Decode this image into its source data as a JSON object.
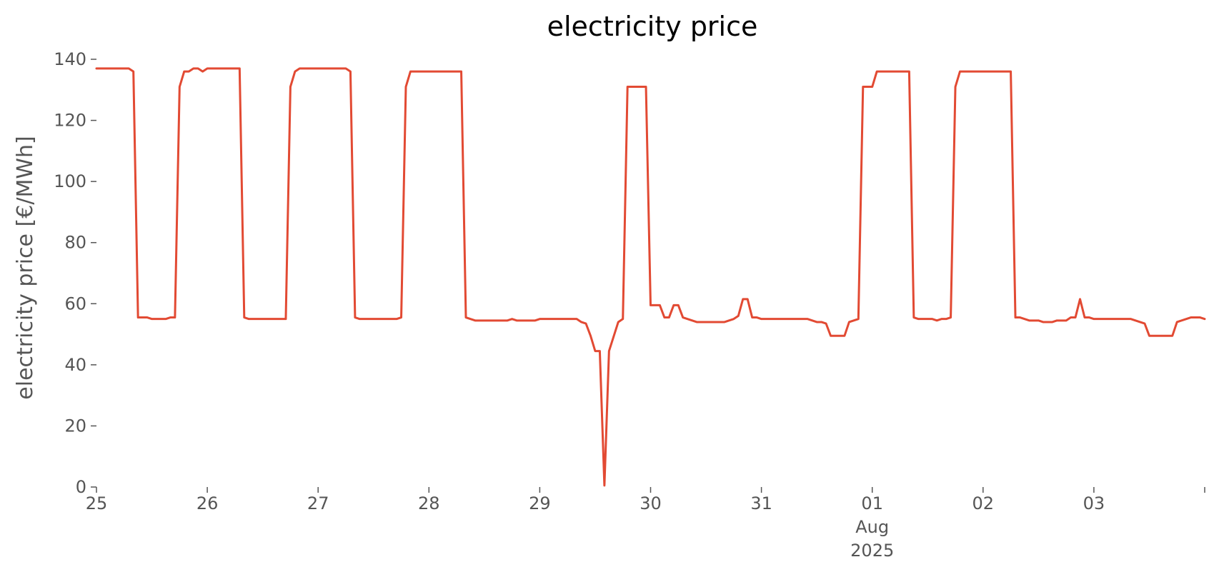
{
  "chart_data": {
    "type": "line",
    "title": "electricity price",
    "xlabel": "",
    "ylabel": "electricity price [€/MWh]",
    "ylim": [
      0,
      140
    ],
    "yticks": [
      0,
      20,
      40,
      60,
      80,
      100,
      120,
      140
    ],
    "xlim": [
      "2025-07-25",
      "2025-08-04"
    ],
    "x_tick_labels": [
      {
        "date": "2025-07-25",
        "lines": [
          "25"
        ]
      },
      {
        "date": "2025-07-26",
        "lines": [
          "26"
        ]
      },
      {
        "date": "2025-07-27",
        "lines": [
          "27"
        ]
      },
      {
        "date": "2025-07-28",
        "lines": [
          "28"
        ]
      },
      {
        "date": "2025-07-29",
        "lines": [
          "29"
        ]
      },
      {
        "date": "2025-07-30",
        "lines": [
          "30"
        ]
      },
      {
        "date": "2025-07-31",
        "lines": [
          "31"
        ]
      },
      {
        "date": "2025-08-01",
        "lines": [
          "01",
          "Aug",
          "2025"
        ]
      },
      {
        "date": "2025-08-02",
        "lines": [
          "02"
        ]
      },
      {
        "date": "2025-08-03",
        "lines": [
          "03"
        ]
      },
      {
        "date": "2025-08-04",
        "lines": []
      }
    ],
    "grid": false,
    "series": [
      {
        "color": "#e24a33",
        "points": [
          [
            "2025-07-25 00:00",
            137
          ],
          [
            "2025-07-25 07:00",
            137
          ],
          [
            "2025-07-25 08:00",
            136
          ],
          [
            "2025-07-25 09:00",
            55.5
          ],
          [
            "2025-07-25 11:00",
            55.5
          ],
          [
            "2025-07-25 12:00",
            55
          ],
          [
            "2025-07-25 15:00",
            55
          ],
          [
            "2025-07-25 16:00",
            55.5
          ],
          [
            "2025-07-25 17:00",
            55.5
          ],
          [
            "2025-07-25 18:00",
            131
          ],
          [
            "2025-07-25 19:00",
            136
          ],
          [
            "2025-07-25 20:00",
            136
          ],
          [
            "2025-07-25 21:00",
            137
          ],
          [
            "2025-07-25 22:00",
            137
          ],
          [
            "2025-07-25 23:00",
            136
          ],
          [
            "2025-07-26 00:00",
            137
          ],
          [
            "2025-07-26 07:00",
            137
          ],
          [
            "2025-07-26 08:00",
            55.5
          ],
          [
            "2025-07-26 09:00",
            55
          ],
          [
            "2025-07-26 17:00",
            55
          ],
          [
            "2025-07-26 18:00",
            131
          ],
          [
            "2025-07-26 19:00",
            136
          ],
          [
            "2025-07-26 20:00",
            137
          ],
          [
            "2025-07-27 06:00",
            137
          ],
          [
            "2025-07-27 07:00",
            136
          ],
          [
            "2025-07-27 08:00",
            55.5
          ],
          [
            "2025-07-27 09:00",
            55
          ],
          [
            "2025-07-27 17:00",
            55
          ],
          [
            "2025-07-27 18:00",
            55.5
          ],
          [
            "2025-07-27 19:00",
            131
          ],
          [
            "2025-07-27 20:00",
            136
          ],
          [
            "2025-07-28 07:00",
            136
          ],
          [
            "2025-07-28 08:00",
            55.5
          ],
          [
            "2025-07-28 10:00",
            54.5
          ],
          [
            "2025-07-28 17:00",
            54.5
          ],
          [
            "2025-07-28 18:00",
            55
          ],
          [
            "2025-07-28 19:00",
            54.5
          ],
          [
            "2025-07-28 23:00",
            54.5
          ],
          [
            "2025-07-29 00:00",
            55
          ],
          [
            "2025-07-29 08:00",
            55
          ],
          [
            "2025-07-29 09:00",
            54
          ],
          [
            "2025-07-29 10:00",
            53.5
          ],
          [
            "2025-07-29 11:00",
            49.5
          ],
          [
            "2025-07-29 12:00",
            44.5
          ],
          [
            "2025-07-29 13:00",
            44.5
          ],
          [
            "2025-07-29 14:00",
            0.5
          ],
          [
            "2025-07-29 15:00",
            44.5
          ],
          [
            "2025-07-29 17:00",
            54
          ],
          [
            "2025-07-29 18:00",
            55
          ],
          [
            "2025-07-29 19:00",
            131
          ],
          [
            "2025-07-29 23:00",
            131
          ],
          [
            "2025-07-30 00:00",
            59.5
          ],
          [
            "2025-07-30 02:00",
            59.5
          ],
          [
            "2025-07-30 03:00",
            55.5
          ],
          [
            "2025-07-30 04:00",
            55.5
          ],
          [
            "2025-07-30 05:00",
            59.5
          ],
          [
            "2025-07-30 06:00",
            59.5
          ],
          [
            "2025-07-30 07:00",
            55.5
          ],
          [
            "2025-07-30 08:00",
            55
          ],
          [
            "2025-07-30 09:00",
            54.5
          ],
          [
            "2025-07-30 10:00",
            54
          ],
          [
            "2025-07-30 16:00",
            54
          ],
          [
            "2025-07-30 17:00",
            54.5
          ],
          [
            "2025-07-30 18:00",
            55
          ],
          [
            "2025-07-30 19:00",
            56
          ],
          [
            "2025-07-30 20:00",
            61.5
          ],
          [
            "2025-07-30 21:00",
            61.5
          ],
          [
            "2025-07-30 22:00",
            55.5
          ],
          [
            "2025-07-30 23:00",
            55.5
          ],
          [
            "2025-07-31 00:00",
            55
          ],
          [
            "2025-07-31 10:00",
            55
          ],
          [
            "2025-07-31 11:00",
            54.5
          ],
          [
            "2025-07-31 12:00",
            54
          ],
          [
            "2025-07-31 13:00",
            54
          ],
          [
            "2025-07-31 14:00",
            53.5
          ],
          [
            "2025-07-31 15:00",
            49.5
          ],
          [
            "2025-07-31 18:00",
            49.5
          ],
          [
            "2025-07-31 19:00",
            54
          ],
          [
            "2025-07-31 21:00",
            55
          ],
          [
            "2025-07-31 22:00",
            131
          ],
          [
            "2025-08-01 00:00",
            131
          ],
          [
            "2025-08-01 01:00",
            136
          ],
          [
            "2025-08-01 08:00",
            136
          ],
          [
            "2025-08-01 09:00",
            55.5
          ],
          [
            "2025-08-01 10:00",
            55
          ],
          [
            "2025-08-01 13:00",
            55
          ],
          [
            "2025-08-01 14:00",
            54.5
          ],
          [
            "2025-08-01 15:00",
            55
          ],
          [
            "2025-08-01 16:00",
            55
          ],
          [
            "2025-08-01 17:00",
            55.5
          ],
          [
            "2025-08-01 18:00",
            131
          ],
          [
            "2025-08-01 19:00",
            136
          ],
          [
            "2025-08-02 06:00",
            136
          ],
          [
            "2025-08-02 07:00",
            55.5
          ],
          [
            "2025-08-02 08:00",
            55.5
          ],
          [
            "2025-08-02 10:00",
            54.5
          ],
          [
            "2025-08-02 12:00",
            54.5
          ],
          [
            "2025-08-02 13:00",
            54
          ],
          [
            "2025-08-02 15:00",
            54
          ],
          [
            "2025-08-02 16:00",
            54.5
          ],
          [
            "2025-08-02 18:00",
            54.5
          ],
          [
            "2025-08-02 19:00",
            55.5
          ],
          [
            "2025-08-02 20:00",
            55.5
          ],
          [
            "2025-08-02 21:00",
            61.5
          ],
          [
            "2025-08-02 22:00",
            55.5
          ],
          [
            "2025-08-02 23:00",
            55.5
          ],
          [
            "2025-08-03 00:00",
            55
          ],
          [
            "2025-08-03 08:00",
            55
          ],
          [
            "2025-08-03 10:00",
            54
          ],
          [
            "2025-08-03 11:00",
            53.5
          ],
          [
            "2025-08-03 12:00",
            49.5
          ],
          [
            "2025-08-03 17:00",
            49.5
          ],
          [
            "2025-08-03 18:00",
            54
          ],
          [
            "2025-08-03 20:00",
            55
          ],
          [
            "2025-08-03 21:00",
            55.5
          ],
          [
            "2025-08-03 23:00",
            55.5
          ],
          [
            "2025-08-04 00:00",
            55
          ]
        ]
      }
    ]
  }
}
